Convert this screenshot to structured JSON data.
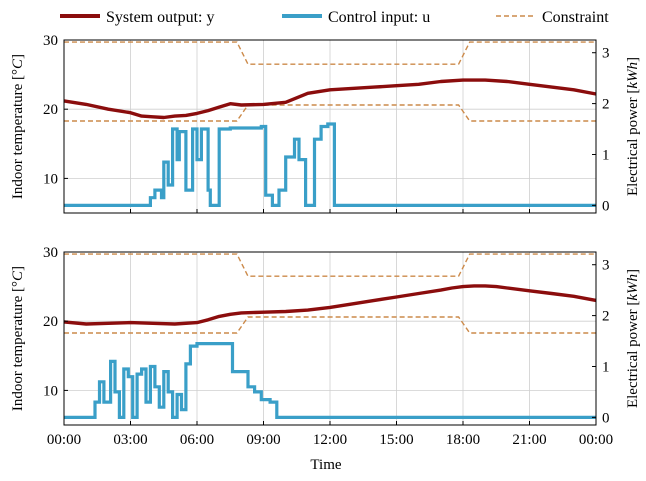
{
  "legend": {
    "y_label": "System output: y",
    "u_label": "Control input: u",
    "c_label": "Constraint"
  },
  "colors": {
    "y": "#8b0d0d",
    "u": "#3a9fc8",
    "c": "#cc8a4a"
  },
  "chart_data": [
    {
      "type": "line",
      "ylabel": "Indoor temperature [°C]",
      "ylabel_parts": [
        "Indoor temperature [",
        "°",
        "C",
        "]"
      ],
      "ylabel_right": "Electrical power [kWh]",
      "ylabel_right_parts": [
        "Electrical power [",
        "kWh",
        "]"
      ],
      "ylim": [
        5,
        30
      ],
      "ylim_right": [
        -0.15,
        3.25
      ],
      "yticks": [
        "10",
        "20",
        "30"
      ],
      "yticks_right": [
        "0",
        "1",
        "2",
        "3"
      ],
      "xlim": [
        0,
        24
      ],
      "grid": true,
      "series": [
        {
          "name": "System output: y",
          "x": [
            0,
            1,
            2,
            3,
            3.5,
            4,
            4.5,
            5,
            5.5,
            6,
            6.5,
            7,
            7.5,
            8,
            9,
            10,
            11,
            12,
            13,
            14,
            15,
            16,
            17,
            18,
            19,
            20,
            21,
            22,
            23,
            24
          ],
          "y": [
            21.2,
            20.7,
            20.0,
            19.5,
            19.0,
            18.9,
            18.8,
            19.0,
            19.1,
            19.4,
            19.8,
            20.3,
            20.8,
            20.6,
            20.7,
            21.0,
            22.3,
            22.8,
            23.0,
            23.2,
            23.4,
            23.6,
            24.0,
            24.2,
            24.2,
            24.0,
            23.6,
            23.2,
            22.8,
            22.2
          ]
        },
        {
          "name": "Control input: u",
          "x": [
            0,
            3.9,
            4.1,
            4.4,
            4.5,
            4.7,
            4.9,
            5.1,
            5.2,
            5.5,
            5.8,
            6.0,
            6.2,
            6.5,
            6.6,
            7.0,
            7.5,
            8.5,
            8.9,
            9.1,
            9.4,
            9.7,
            10.0,
            10.4,
            10.6,
            10.9,
            11.1,
            11.3,
            11.6,
            11.9,
            12.2,
            24
          ],
          "y": [
            0,
            0.15,
            0.3,
            0.15,
            0.85,
            0.4,
            1.5,
            0.9,
            1.45,
            0.3,
            1.5,
            0.9,
            1.5,
            0.3,
            0,
            1.5,
            1.52,
            1.52,
            1.55,
            0.2,
            0,
            0.3,
            0.95,
            1.3,
            0.9,
            0,
            0,
            1.3,
            1.55,
            1.6,
            0,
            0
          ]
        },
        {
          "name": "Constraint",
          "upper_x": [
            0,
            7.8,
            8.3,
            17.8,
            18.3,
            24
          ],
          "upper_y": [
            29.7,
            29.7,
            26.5,
            26.5,
            29.7,
            29.7
          ],
          "lower_x": [
            0,
            7.8,
            8.3,
            17.8,
            18.3,
            24
          ],
          "lower_y": [
            18.3,
            18.3,
            20.6,
            20.6,
            18.3,
            18.3
          ]
        }
      ]
    },
    {
      "type": "line",
      "ylabel": "Indoor temperature [°C]",
      "ylabel_parts": [
        "Indoor temperature [",
        "°",
        "C",
        "]"
      ],
      "ylabel_right": "Electrical power [kWh]",
      "ylabel_right_parts": [
        "Electrical power [",
        "kWh",
        "]"
      ],
      "xlabel": "Time",
      "ylim": [
        5,
        30
      ],
      "ylim_right": [
        -0.15,
        3.25
      ],
      "yticks": [
        "10",
        "20",
        "30"
      ],
      "yticks_right": [
        "0",
        "1",
        "2",
        "3"
      ],
      "xticks": [
        "00:00",
        "03:00",
        "06:00",
        "09:00",
        "12:00",
        "15:00",
        "18:00",
        "21:00",
        "00:00"
      ],
      "xlim": [
        0,
        24
      ],
      "grid": true,
      "series": [
        {
          "name": "System output: y",
          "x": [
            0,
            1,
            2,
            3,
            4,
            5,
            6,
            6.5,
            7,
            7.5,
            8,
            9,
            10,
            11,
            12,
            13,
            14,
            15,
            16,
            17,
            17.5,
            18,
            18.5,
            19,
            19.5,
            20,
            21,
            22,
            23,
            24
          ],
          "y": [
            19.9,
            19.6,
            19.7,
            19.8,
            19.7,
            19.6,
            19.8,
            20.2,
            20.7,
            21.0,
            21.2,
            21.3,
            21.4,
            21.6,
            22.0,
            22.5,
            23.0,
            23.5,
            24.0,
            24.5,
            24.8,
            25.0,
            25.1,
            25.1,
            25.0,
            24.8,
            24.4,
            24.0,
            23.6,
            23.0
          ]
        },
        {
          "name": "Control input: u",
          "x": [
            0,
            1.4,
            1.6,
            1.8,
            2.1,
            2.3,
            2.5,
            2.7,
            2.9,
            3.1,
            3.3,
            3.5,
            3.7,
            3.9,
            4.1,
            4.3,
            4.5,
            4.7,
            4.9,
            5.1,
            5.3,
            5.5,
            5.7,
            6.0,
            7.1,
            7.4,
            7.6,
            8.3,
            8.6,
            8.9,
            9.3,
            9.6,
            10.0,
            24
          ],
          "y": [
            0,
            0.3,
            0.7,
            0.3,
            1.1,
            0.5,
            0,
            0.95,
            0.8,
            0,
            0.85,
            0.95,
            0.3,
            1.0,
            0.6,
            0.2,
            0.9,
            0.5,
            0,
            0.45,
            0.15,
            1.05,
            1.4,
            1.45,
            1.45,
            1.45,
            0.9,
            0.6,
            0.5,
            0.35,
            0.3,
            0,
            0,
            0
          ]
        },
        {
          "name": "Constraint",
          "upper_x": [
            0,
            7.8,
            8.3,
            17.8,
            18.3,
            24
          ],
          "upper_y": [
            29.7,
            29.7,
            26.5,
            26.5,
            29.7,
            29.7
          ],
          "lower_x": [
            0,
            7.8,
            8.3,
            17.8,
            18.3,
            24
          ],
          "lower_y": [
            18.3,
            18.3,
            20.6,
            20.6,
            18.3,
            18.3
          ]
        }
      ]
    }
  ]
}
